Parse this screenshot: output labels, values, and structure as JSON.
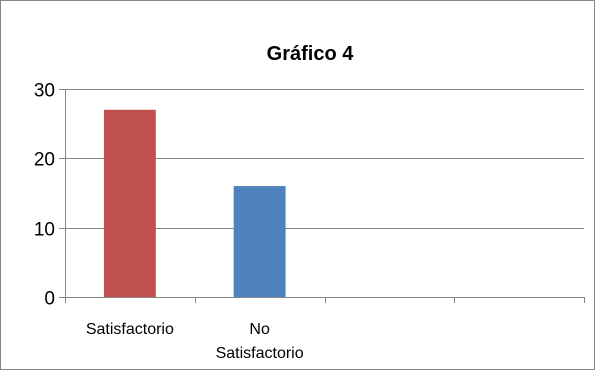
{
  "chart_data": {
    "type": "bar",
    "title": "Gráfico 4",
    "categories": [
      [
        "Satisfactorio"
      ],
      [
        "No",
        "Satisfactorio"
      ],
      [
        ""
      ],
      [
        ""
      ]
    ],
    "values": [
      27,
      16,
      null,
      null
    ],
    "colors": [
      "#C0504D",
      "#4F81BD"
    ],
    "ylim": [
      0,
      30
    ],
    "yticks": [
      0,
      10,
      20,
      30
    ],
    "grid": true,
    "legend": "none"
  }
}
